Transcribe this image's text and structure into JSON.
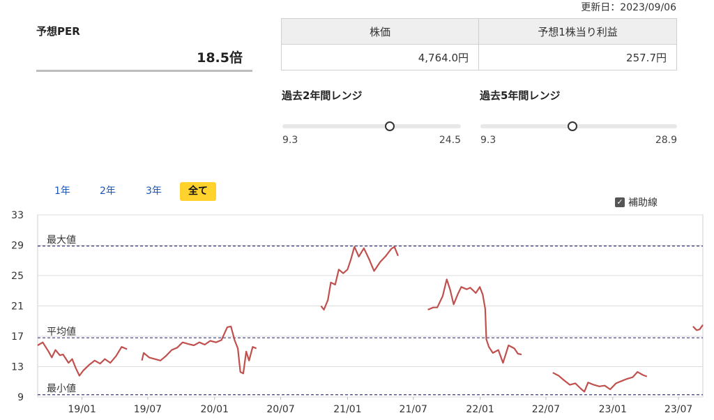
{
  "updated": "更新日：2023/09/06",
  "per": {
    "label": "予想PER",
    "value": "18.5倍"
  },
  "price_table": {
    "headers": [
      "株価",
      "予想1株当り利益"
    ],
    "values": [
      "4,764.0円",
      "257.7円"
    ]
  },
  "ranges": [
    {
      "title": "過去2年間レンジ",
      "min": "9.3",
      "max": "24.5",
      "min_value": 9.3,
      "max_value": 24.5,
      "current": 18.5
    },
    {
      "title": "過去5年間レンジ",
      "min": "9.3",
      "max": "28.9",
      "min_value": 9.3,
      "max_value": 28.9,
      "current": 18.5
    }
  ],
  "periods": [
    {
      "label": "1年",
      "active": false
    },
    {
      "label": "2年",
      "active": false
    },
    {
      "label": "3年",
      "active": false
    },
    {
      "label": "全て",
      "active": true
    }
  ],
  "aux_lines": {
    "label": "補助線",
    "checked": true,
    "check_icon": "checkmark-icon"
  },
  "colors": {
    "line": "#c0504d",
    "ref_line": "#3a3a7a",
    "active_tab": "#ffd22e",
    "link": "#1a56b6"
  },
  "chart_data": {
    "type": "line",
    "ylim": [
      9,
      33
    ],
    "yticks": [
      9,
      13,
      17,
      21,
      25,
      29,
      33
    ],
    "xlim": [
      "2018-09-01",
      "2023-09-06"
    ],
    "xticks": [
      {
        "label": "19/01",
        "date": "2019-01-01"
      },
      {
        "label": "19/07",
        "date": "2019-07-01"
      },
      {
        "label": "20/01",
        "date": "2020-01-01"
      },
      {
        "label": "20/07",
        "date": "2020-07-01"
      },
      {
        "label": "21/01",
        "date": "2021-01-01"
      },
      {
        "label": "21/07",
        "date": "2021-07-01"
      },
      {
        "label": "22/01",
        "date": "2022-01-01"
      },
      {
        "label": "22/07",
        "date": "2022-07-01"
      },
      {
        "label": "23/01",
        "date": "2023-01-01"
      },
      {
        "label": "23/07",
        "date": "2023-07-01"
      }
    ],
    "reference_lines": [
      {
        "label": "最大値",
        "value": 28.9
      },
      {
        "label": "平均値",
        "value": 16.8
      },
      {
        "label": "最小値",
        "value": 9.3
      }
    ],
    "segments": [
      [
        [
          "2018-09-01",
          15.8
        ],
        [
          "2018-09-15",
          16.2
        ],
        [
          "2018-10-01",
          15.0
        ],
        [
          "2018-10-10",
          14.2
        ],
        [
          "2018-10-20",
          15.2
        ],
        [
          "2018-11-01",
          14.5
        ],
        [
          "2018-11-10",
          14.6
        ],
        [
          "2018-11-25",
          13.5
        ],
        [
          "2018-12-05",
          14.0
        ],
        [
          "2018-12-15",
          12.8
        ],
        [
          "2018-12-25",
          11.8
        ],
        [
          "2019-01-05",
          12.5
        ],
        [
          "2019-01-20",
          13.2
        ],
        [
          "2019-02-05",
          13.8
        ],
        [
          "2019-02-20",
          13.4
        ],
        [
          "2019-03-05",
          14.0
        ],
        [
          "2019-03-20",
          13.5
        ],
        [
          "2019-04-05",
          14.4
        ],
        [
          "2019-04-20",
          15.6
        ],
        [
          "2019-05-05",
          15.3
        ]
      ],
      [
        [
          "2019-06-15",
          13.8
        ],
        [
          "2019-06-20",
          14.8
        ],
        [
          "2019-07-05",
          14.2
        ],
        [
          "2019-07-20",
          14.0
        ],
        [
          "2019-08-05",
          13.8
        ],
        [
          "2019-08-20",
          14.4
        ],
        [
          "2019-09-05",
          15.2
        ],
        [
          "2019-09-20",
          15.5
        ],
        [
          "2019-10-05",
          16.2
        ],
        [
          "2019-10-20",
          16.0
        ],
        [
          "2019-11-05",
          15.8
        ],
        [
          "2019-11-20",
          16.2
        ],
        [
          "2019-12-05",
          15.9
        ],
        [
          "2019-12-20",
          16.4
        ],
        [
          "2020-01-05",
          16.2
        ],
        [
          "2020-01-20",
          16.5
        ],
        [
          "2020-02-05",
          18.2
        ],
        [
          "2020-02-15",
          18.3
        ],
        [
          "2020-02-25",
          16.5
        ],
        [
          "2020-03-05",
          15.4
        ],
        [
          "2020-03-12",
          12.3
        ],
        [
          "2020-03-20",
          12.1
        ],
        [
          "2020-03-28",
          15.0
        ],
        [
          "2020-04-05",
          13.8
        ],
        [
          "2020-04-15",
          15.6
        ],
        [
          "2020-04-25",
          15.4
        ]
      ],
      [
        [
          "2020-10-20",
          21.0
        ],
        [
          "2020-10-28",
          20.5
        ],
        [
          "2020-11-08",
          21.8
        ],
        [
          "2020-11-16",
          24.1
        ],
        [
          "2020-11-28",
          23.8
        ],
        [
          "2020-12-08",
          25.8
        ],
        [
          "2020-12-20",
          25.3
        ],
        [
          "2021-01-01",
          25.8
        ],
        [
          "2021-01-10",
          27.1
        ],
        [
          "2021-01-20",
          28.8
        ],
        [
          "2021-02-01",
          27.5
        ],
        [
          "2021-02-15",
          28.6
        ],
        [
          "2021-03-01",
          27.2
        ],
        [
          "2021-03-15",
          25.6
        ],
        [
          "2021-04-01",
          26.8
        ],
        [
          "2021-04-15",
          27.5
        ],
        [
          "2021-05-01",
          28.5
        ],
        [
          "2021-05-10",
          28.8
        ],
        [
          "2021-05-20",
          27.6
        ]
      ],
      [
        [
          "2021-08-10",
          20.5
        ],
        [
          "2021-08-25",
          20.8
        ],
        [
          "2021-09-05",
          20.8
        ],
        [
          "2021-09-20",
          22.3
        ],
        [
          "2021-10-01",
          24.5
        ],
        [
          "2021-10-10",
          23.2
        ],
        [
          "2021-10-20",
          21.2
        ],
        [
          "2021-11-01",
          22.6
        ],
        [
          "2021-11-10",
          23.5
        ],
        [
          "2021-11-25",
          23.2
        ],
        [
          "2021-12-05",
          23.4
        ],
        [
          "2021-12-20",
          22.7
        ],
        [
          "2021-12-31",
          23.5
        ],
        [
          "2022-01-08",
          22.5
        ],
        [
          "2022-01-15",
          20.6
        ],
        [
          "2022-01-18",
          16.6
        ],
        [
          "2022-01-25",
          15.6
        ],
        [
          "2022-02-05",
          14.8
        ],
        [
          "2022-02-20",
          15.2
        ],
        [
          "2022-03-05",
          13.5
        ],
        [
          "2022-03-20",
          15.8
        ],
        [
          "2022-04-05",
          15.4
        ],
        [
          "2022-04-15",
          14.7
        ],
        [
          "2022-04-25",
          14.6
        ]
      ],
      [
        [
          "2022-07-20",
          12.2
        ],
        [
          "2022-08-05",
          11.8
        ],
        [
          "2022-08-20",
          11.2
        ],
        [
          "2022-09-05",
          10.6
        ],
        [
          "2022-09-20",
          10.8
        ],
        [
          "2022-10-05",
          10.1
        ],
        [
          "2022-10-15",
          9.7
        ],
        [
          "2022-10-25",
          10.9
        ],
        [
          "2022-11-10",
          10.6
        ],
        [
          "2022-11-25",
          10.4
        ],
        [
          "2022-12-10",
          10.5
        ],
        [
          "2022-12-25",
          10.0
        ],
        [
          "2023-01-10",
          10.8
        ],
        [
          "2023-01-25",
          11.1
        ],
        [
          "2023-02-10",
          11.4
        ],
        [
          "2023-02-25",
          11.6
        ],
        [
          "2023-03-10",
          12.3
        ],
        [
          "2023-03-25",
          11.9
        ],
        [
          "2023-04-05",
          11.7
        ]
      ],
      [
        [
          "2023-08-10",
          18.3
        ],
        [
          "2023-08-20",
          17.8
        ],
        [
          "2023-08-28",
          17.9
        ],
        [
          "2023-09-06",
          18.5
        ]
      ]
    ]
  }
}
